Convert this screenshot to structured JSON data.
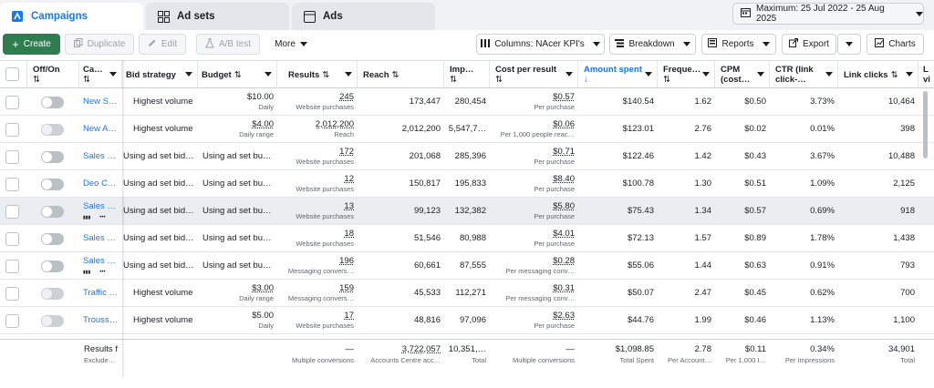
{
  "tabs": {
    "campaigns": "Campaigns",
    "adsets": "Ad sets",
    "ads": "Ads"
  },
  "date_range": "Maximum: 25 Jul 2022 - 25 Aug 2025",
  "toolbar": {
    "create": "Create",
    "duplicate": "Duplicate",
    "edit": "Edit",
    "ab_test": "A/B test",
    "more": "More",
    "columns": "Columns: NAcer KPI's",
    "breakdown": "Breakdown",
    "reports": "Reports",
    "export": "Export",
    "charts": "Charts"
  },
  "headers": {
    "offon": "Off/On",
    "campaign": "Ca…",
    "bid": "Bid strategy",
    "budget": "Budget",
    "results": "Results",
    "reach": "Reach",
    "impressions": "Imp…",
    "cost": "Cost per result",
    "amount": "Amount spent",
    "frequency": "Freque…",
    "cpm": "CPM",
    "cpm2": "(cost…",
    "ctr": "CTR (link",
    "ctr2": "click-…",
    "clicks": "Link clicks",
    "last": "L",
    "last2": "vi"
  },
  "rows": [
    {
      "name": "New S…",
      "bid": "Highest volume",
      "budget": "$10.00",
      "budget_sub": "Daily",
      "results": "245",
      "results_sub": "Website purchases",
      "reach": "173,447",
      "imp": "280,454",
      "cost": "$0.57",
      "cost_sub": "Per purchase",
      "amount": "$140.54",
      "freq": "1.62",
      "cpm": "$0.50",
      "ctr": "3.73%",
      "clicks": "10,464"
    },
    {
      "name": "New A…",
      "bid": "Highest volume",
      "budget": "$4.00",
      "budget_sub": "Daily range",
      "results": "2,012,200",
      "results_sub": "Reach",
      "reach": "2,012,200",
      "imp": "5,547,7…",
      "cost": "$0.06",
      "cost_sub": "Per 1,000 people reac…",
      "amount": "$123.01",
      "freq": "2.76",
      "cpm": "$0.02",
      "ctr": "0.01%",
      "clicks": "398"
    },
    {
      "name": "Sales …",
      "bid": "Using ad set bid…",
      "budget": "Using ad set bu…",
      "budget_sub": "",
      "results": "172",
      "results_sub": "Website purchases",
      "reach": "201,068",
      "imp": "285,396",
      "cost": "$0.71",
      "cost_sub": "Per purchase",
      "amount": "$122.46",
      "freq": "1.42",
      "cpm": "$0.43",
      "ctr": "3.67%",
      "clicks": "10,488"
    },
    {
      "name": "Deo Cr…",
      "bid": "Using ad set bid…",
      "budget": "Using ad set bu…",
      "budget_sub": "",
      "results": "12",
      "results_sub": "Website purchases",
      "reach": "150,817",
      "imp": "195,833",
      "cost": "$8.40",
      "cost_sub": "Per purchase",
      "amount": "$100.78",
      "freq": "1.30",
      "cpm": "$0.51",
      "ctr": "1.09%",
      "clicks": "2,125"
    },
    {
      "name": "Sales …",
      "bid": "Using ad set bid…",
      "budget": "Using ad set bu…",
      "budget_sub": "",
      "results": "13",
      "results_sub": "Website purchases",
      "reach": "99,123",
      "imp": "132,382",
      "cost": "$5.80",
      "cost_sub": "Per purchase",
      "amount": "$75.43",
      "freq": "1.34",
      "cpm": "$0.57",
      "ctr": "0.69%",
      "clicks": "918"
    },
    {
      "name": "Sales …",
      "bid": "Using ad set bid…",
      "budget": "Using ad set bu…",
      "budget_sub": "",
      "results": "18",
      "results_sub": "Website purchases",
      "reach": "51,546",
      "imp": "80,988",
      "cost": "$4.01",
      "cost_sub": "Per purchase",
      "amount": "$72.13",
      "freq": "1.57",
      "cpm": "$0.89",
      "ctr": "1.78%",
      "clicks": "1,438"
    },
    {
      "name": "Sales …",
      "bid": "Using ad set bid…",
      "budget": "Using ad set bu…",
      "budget_sub": "",
      "results": "196",
      "results_sub": "Messaging convers…",
      "reach": "60,661",
      "imp": "87,555",
      "cost": "$0.28",
      "cost_sub": "Per messaging conv…",
      "amount": "$55.06",
      "freq": "1.44",
      "cpm": "$0.63",
      "ctr": "0.91%",
      "clicks": "793"
    },
    {
      "name": "Traffic …",
      "bid": "Highest volume",
      "budget": "$3.00",
      "budget_sub": "Daily range",
      "results": "159",
      "results_sub": "Messaging convers…",
      "reach": "45,533",
      "imp": "112,271",
      "cost": "$0.31",
      "cost_sub": "Per messaging conv…",
      "amount": "$50.07",
      "freq": "2.47",
      "cpm": "$0.45",
      "ctr": "0.62%",
      "clicks": "700"
    },
    {
      "name": "Trouss…",
      "bid": "Highest volume",
      "budget": "$5.00",
      "budget_sub": "Daily",
      "results": "17",
      "results_sub": "Website purchases",
      "reach": "48,816",
      "imp": "97,096",
      "cost": "$2.63",
      "cost_sub": "Per purchase",
      "amount": "$44.76",
      "freq": "1.99",
      "cpm": "$0.46",
      "ctr": "1.13%",
      "clicks": "1,100"
    }
  ],
  "footer": {
    "label": "Results f",
    "label_sub": "Exclude…",
    "results": "—",
    "results_sub": "Multiple conversions",
    "reach": "3,722,057",
    "reach_sub": "Accounts Centre acc…",
    "imp": "10,351,…",
    "imp_sub": "Total",
    "cost": "—",
    "cost_sub": "Multiple conversions",
    "amount": "$1,098.85",
    "amount_sub": "Total Spent",
    "freq": "2.78",
    "freq_sub": "Per Account…",
    "cpm": "$0.11",
    "cpm_sub": "Per 1,000 I…",
    "ctr": "0.34%",
    "ctr_sub": "Per Impressions",
    "clicks": "34,901",
    "clicks_sub": "Total"
  },
  "colors": {
    "accent": "#1877f2",
    "create_green": "#2e7d4f"
  }
}
